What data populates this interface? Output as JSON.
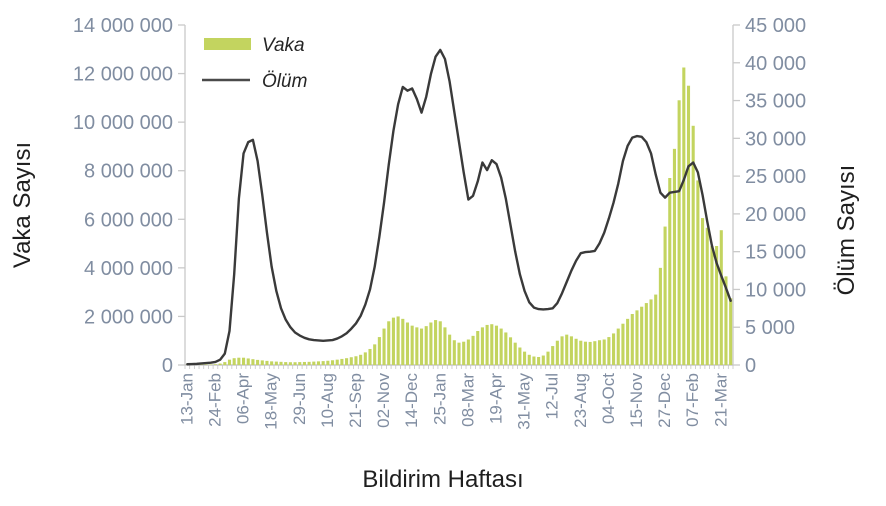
{
  "chart_data": {
    "type": "bar+line",
    "title": "",
    "xlabel": "Bildirim Haftası",
    "left_axis": {
      "title": "Vaka Sayısı",
      "min": 0,
      "max": 14000000,
      "step": 2000000,
      "tick_labels": [
        "0",
        "2 000 000",
        "4 000 000",
        "6 000 000",
        "8 000 000",
        "10 000 000",
        "12 000 000",
        "14 000 000"
      ]
    },
    "right_axis": {
      "title": "Ölüm Sayısı",
      "min": 0,
      "max": 45000,
      "step": 5000,
      "tick_labels": [
        "0",
        "5 000",
        "10 000",
        "15 000",
        "20 000",
        "25 000",
        "30 000",
        "35 000",
        "40 000",
        "45 000"
      ]
    },
    "x_axis": {
      "title": "Bildirim Haftası",
      "tick_labels": [
        "13-Jan",
        "24-Feb",
        "06-Apr",
        "18-May",
        "29-Jun",
        "10-Aug",
        "21-Sep",
        "02-Nov",
        "14-Dec",
        "25-Jan",
        "08-Mar",
        "19-Apr",
        "31-May",
        "12-Jul",
        "23-Aug",
        "04-Oct",
        "15-Nov",
        "27-Dec",
        "07-Feb",
        "21-Mar"
      ],
      "label_every": 6
    },
    "legend": {
      "position": "top-left-inside",
      "entries": [
        {
          "label": "Vaka",
          "type": "bar",
          "color": "#c3d45f"
        },
        {
          "label": "Ölüm",
          "type": "line",
          "color": "#4a4a4a"
        }
      ]
    },
    "colors": {
      "bar_fill": "#c3d45f",
      "line_stroke": "#3a3a3a",
      "tick_text": "#808da1",
      "axis_line": "#c9c9c9"
    },
    "grid": false,
    "series": [
      {
        "name": "Vaka",
        "type": "bar",
        "axis": "left",
        "values": [
          10000,
          12000,
          15000,
          18000,
          20000,
          22000,
          30000,
          60000,
          120000,
          220000,
          280000,
          300000,
          300000,
          270000,
          240000,
          210000,
          190000,
          170000,
          150000,
          140000,
          130000,
          120000,
          115000,
          115000,
          120000,
          125000,
          130000,
          140000,
          150000,
          160000,
          175000,
          195000,
          220000,
          250000,
          280000,
          320000,
          360000,
          420000,
          520000,
          660000,
          850000,
          1150000,
          1500000,
          1800000,
          1950000,
          2000000,
          1900000,
          1750000,
          1620000,
          1550000,
          1500000,
          1600000,
          1750000,
          1850000,
          1800000,
          1550000,
          1250000,
          1020000,
          920000,
          960000,
          1050000,
          1200000,
          1400000,
          1550000,
          1650000,
          1680000,
          1620000,
          1500000,
          1340000,
          1140000,
          920000,
          720000,
          550000,
          420000,
          350000,
          330000,
          390000,
          550000,
          780000,
          1000000,
          1180000,
          1250000,
          1180000,
          1080000,
          1000000,
          960000,
          950000,
          980000,
          1020000,
          1050000,
          1150000,
          1300000,
          1500000,
          1700000,
          1900000,
          2100000,
          2250000,
          2400000,
          2550000,
          2700000,
          2900000,
          4000000,
          5700000,
          7700000,
          8900000,
          10900000,
          12250000,
          11500000,
          9850000,
          7600000,
          6050000,
          5650000,
          4900000,
          4900000,
          5550000,
          3650000,
          2750000
        ]
      },
      {
        "name": "Ölüm",
        "type": "line",
        "axis": "right",
        "values": [
          100,
          120,
          150,
          200,
          250,
          300,
          400,
          700,
          1500,
          4500,
          12000,
          22000,
          28000,
          29500,
          29800,
          27000,
          22500,
          17500,
          13000,
          9800,
          7500,
          6000,
          5000,
          4300,
          3900,
          3600,
          3400,
          3300,
          3250,
          3200,
          3250,
          3300,
          3500,
          3800,
          4200,
          4800,
          5500,
          6500,
          8000,
          10000,
          13000,
          17000,
          21500,
          26500,
          31000,
          34500,
          36800,
          36300,
          36600,
          35200,
          33400,
          35500,
          38500,
          40800,
          41700,
          40500,
          37500,
          33500,
          29500,
          25500,
          21900,
          22400,
          24300,
          26800,
          25800,
          27100,
          26600,
          24800,
          22000,
          18500,
          15000,
          12000,
          9800,
          8300,
          7600,
          7400,
          7350,
          7400,
          7500,
          8200,
          9500,
          11000,
          12500,
          13800,
          14800,
          14950,
          15000,
          15100,
          16100,
          17500,
          19400,
          21500,
          24000,
          27000,
          29000,
          30100,
          30300,
          30200,
          29500,
          28000,
          25200,
          22800,
          22150,
          22800,
          22900,
          23000,
          24500,
          26300,
          26800,
          25500,
          22500,
          19000,
          15800,
          13500,
          11800,
          10200,
          8500
        ]
      }
    ]
  }
}
